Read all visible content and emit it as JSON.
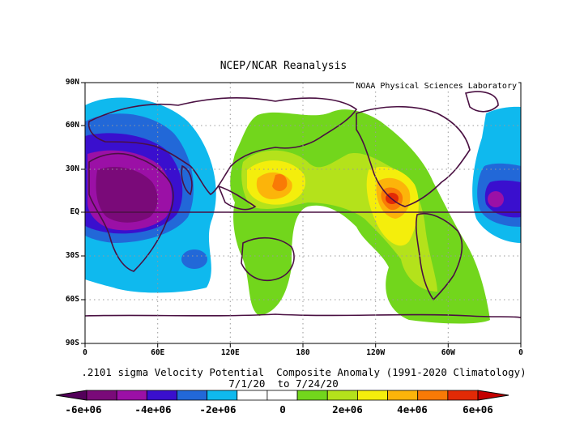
{
  "title": "NCEP/NCAR Reanalysis",
  "credit": "NOAA Physical Sciences Laboratory",
  "caption_line1": ".2101 sigma Velocity Potential  Composite Anomaly (1991-2020 Climatology)",
  "caption_line2": "7/1/20  to 7/24/20",
  "lat_labels": [
    "90N",
    "60N",
    "30N",
    "EQ",
    "30S",
    "60S",
    "90S"
  ],
  "lon_labels": [
    "0",
    "60E",
    "120E",
    "180",
    "120W",
    "60W",
    "0"
  ],
  "colorbar": {
    "labels": [
      "-6e+06",
      "-4e+06",
      "-2e+06",
      "0",
      "2e+06",
      "4e+06",
      "6e+06"
    ],
    "colors": [
      "#7a0a79",
      "#9b10a6",
      "#3a0fce",
      "#2268d8",
      "#0fb9ee",
      "#ffffff",
      "#ffffff",
      "#72d61c",
      "#b4e21b",
      "#f4ee0c",
      "#fcb40a",
      "#f97a06",
      "#e22a06"
    ],
    "left_arrow_color": "#53005a",
    "right_arrow_color": "#c40000"
  },
  "map_colors": {
    "land_outline": "#4a1042",
    "grid": "#9a9a9a"
  }
}
